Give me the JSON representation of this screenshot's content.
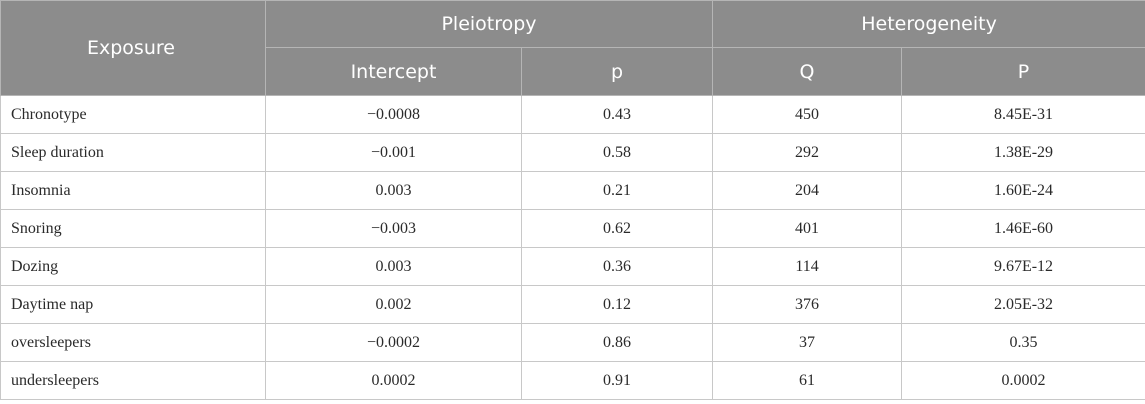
{
  "headers": {
    "exposure": "Exposure",
    "pleiotropy": "Pleiotropy",
    "heterogeneity": "Heterogeneity",
    "intercept": "Intercept",
    "p_lower": "p",
    "q": "Q",
    "p_upper": "P"
  },
  "rows": [
    {
      "exposure": "Chronotype",
      "intercept": "−0.0008",
      "p": "0.43",
      "q": "450",
      "P": "8.45E-31"
    },
    {
      "exposure": "Sleep duration",
      "intercept": "−0.001",
      "p": "0.58",
      "q": "292",
      "P": "1.38E-29"
    },
    {
      "exposure": "Insomnia",
      "intercept": "0.003",
      "p": "0.21",
      "q": "204",
      "P": "1.60E-24"
    },
    {
      "exposure": "Snoring",
      "intercept": "−0.003",
      "p": "0.62",
      "q": "401",
      "P": "1.46E-60"
    },
    {
      "exposure": "Dozing",
      "intercept": "0.003",
      "p": "0.36",
      "q": "114",
      "P": "9.67E-12"
    },
    {
      "exposure": "Daytime nap",
      "intercept": "0.002",
      "p": "0.12",
      "q": "376",
      "P": "2.05E-32"
    },
    {
      "exposure": "oversleepers",
      "intercept": "−0.0002",
      "p": "0.86",
      "q": "37",
      "P": "0.35"
    },
    {
      "exposure": "undersleepers",
      "intercept": "0.0002",
      "p": "0.91",
      "q": "61",
      "P": "0.0002"
    }
  ]
}
